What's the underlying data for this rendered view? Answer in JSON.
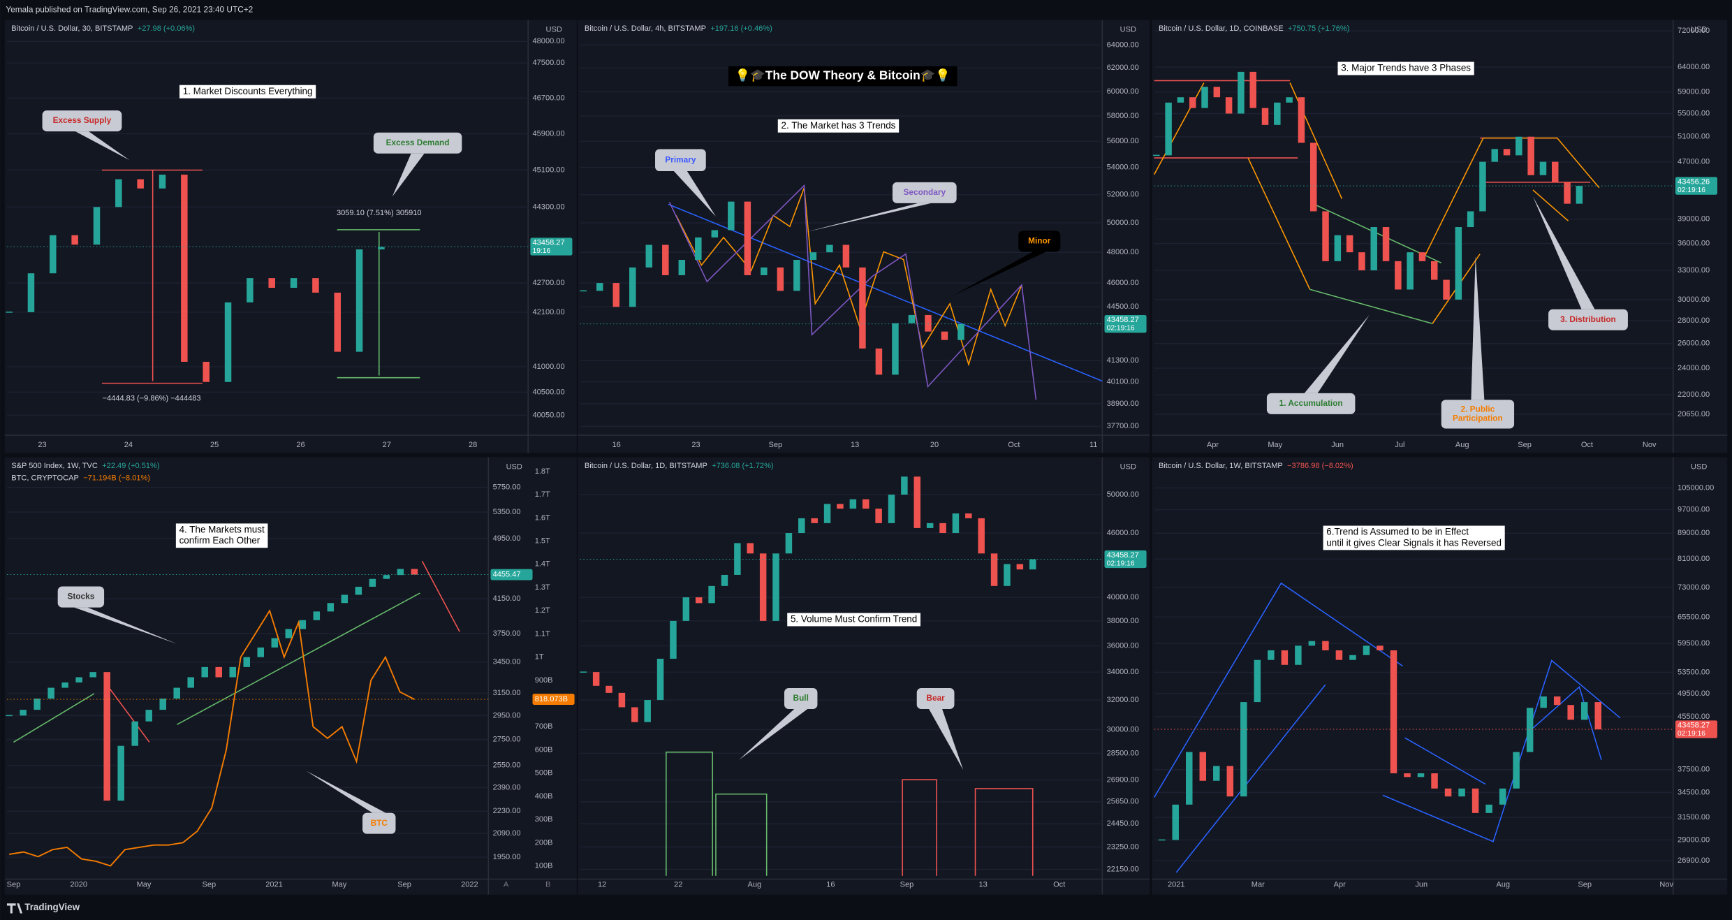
{
  "header": "Yemala published on TradingView.com, Sep 26, 2021 23:40 UTC+2",
  "footer": "TradingView",
  "panels": [
    {
      "legend": [
        {
          "text": "Bitcoin / U.S. Dollar, 30, BITSTAMP",
          "change": "+27.98 (+0.06%)",
          "change_color": "#26a69a"
        }
      ],
      "title_lines": [
        "1. Market Discounts Everything"
      ],
      "annotations": [
        {
          "lines": [
            "Excess Supply"
          ],
          "color": "#c62828"
        },
        {
          "lines": [
            "Excess Demand"
          ],
          "color": "#2e7d32"
        }
      ],
      "measures": [
        "3059.10 (7.51%) 305910",
        "−4444.83 (−9.86%) −444483"
      ],
      "unit": "USD",
      "log_scale": true,
      "ylim": [
        39750,
        48400
      ],
      "yticks": [
        {
          "value": 48000,
          "label": "48000.00"
        },
        {
          "value": 47500,
          "label": "47500.00"
        },
        {
          "value": 46700,
          "label": "46700.00"
        },
        {
          "value": 45900,
          "label": "45900.00"
        },
        {
          "value": 45100,
          "label": "45100.00"
        },
        {
          "value": 44300,
          "label": "44300.00"
        },
        {
          "value": 42700,
          "label": "42700.00"
        },
        {
          "value": 42100,
          "label": "42100.00"
        },
        {
          "value": 41000,
          "label": "41000.00"
        },
        {
          "value": 40500,
          "label": "40500.00"
        },
        {
          "value": 40050,
          "label": "40050.00"
        }
      ],
      "price": {
        "value": 43458.27,
        "time": "19:16",
        "color": "#26a69a"
      },
      "xticks": [
        "23",
        "24",
        "25",
        "26",
        "27",
        "28"
      ],
      "series": [
        {
          "values": [
            42100,
            42900,
            43700,
            43500,
            44300,
            44900,
            44700,
            45000,
            41100,
            40700,
            42300,
            42800,
            42600,
            42800,
            42500,
            41300,
            43400,
            43450
          ],
          "up_color": "#26a69a",
          "down_color": "#ef5350"
        }
      ]
    },
    {
      "legend": [
        {
          "text": "Bitcoin / U.S. Dollar, 4h, BITSTAMP",
          "change": "+197.16 (+0.46%)",
          "change_color": "#26a69a"
        }
      ],
      "headline": "💡🎓The DOW Theory & Bitcoin🎓💡",
      "title_lines": [
        "2. The Market has 3 Trends"
      ],
      "annotations": [
        {
          "lines": [
            "Primary"
          ],
          "color": "#3d5afe"
        },
        {
          "lines": [
            "Secondary"
          ],
          "color": "#7e57c2"
        },
        {
          "lines": [
            "Minor"
          ],
          "color": "#ff9800"
        }
      ],
      "unit": "USD",
      "log_scale": true,
      "ylim": [
        37470,
        65870
      ],
      "yticks": [
        {
          "value": 64000,
          "label": "64000.00"
        },
        {
          "value": 62000,
          "label": "62000.00"
        },
        {
          "value": 60000,
          "label": "60000.00"
        },
        {
          "value": 58000,
          "label": "58000.00"
        },
        {
          "value": 56000,
          "label": "56000.00"
        },
        {
          "value": 54000,
          "label": "54000.00"
        },
        {
          "value": 52000,
          "label": "52000.00"
        },
        {
          "value": 50000,
          "label": "50000.00"
        },
        {
          "value": 48000,
          "label": "48000.00"
        },
        {
          "value": 46000,
          "label": "46000.00"
        },
        {
          "value": 44500,
          "label": "44500.00"
        },
        {
          "value": 41300,
          "label": "41300.00"
        },
        {
          "value": 40100,
          "label": "40100.00"
        },
        {
          "value": 38900,
          "label": "38900.00"
        },
        {
          "value": 37700,
          "label": "37700.00"
        }
      ],
      "price": {
        "value": 43458.27,
        "time": "02:19:16",
        "color": "#26a69a"
      },
      "xticks": [
        "16",
        "23",
        "Sep",
        "13",
        "20",
        "Oct",
        "11"
      ],
      "series": [
        {
          "values": [
            45500,
            46000,
            44500,
            47000,
            48500,
            46500,
            47500,
            49000,
            49500,
            51500,
            46500,
            47000,
            45500,
            47500,
            48000,
            48500,
            47000,
            42000,
            40500,
            43500,
            44000,
            43000,
            42500,
            43450
          ],
          "up_color": "#26a69a",
          "down_color": "#ef5350"
        }
      ]
    },
    {
      "legend": [
        {
          "text": "Bitcoin / U.S. Dollar, 1D, COINBASE",
          "change": "+750.75 (+1.76%)",
          "change_color": "#26a69a"
        }
      ],
      "title_lines": [
        "3. Major Trends have 3 Phases"
      ],
      "annotations": [
        {
          "lines": [
            "1. Accumulation"
          ],
          "color": "#2e7d32"
        },
        {
          "lines": [
            "2. Public",
            "Participation"
          ],
          "color": "#f57c00"
        },
        {
          "lines": [
            "3. Distribution"
          ],
          "color": "#c62828"
        }
      ],
      "unit": "USD",
      "log_scale": true,
      "ylim": [
        19570,
        73560
      ],
      "yticks": [
        {
          "value": 72000,
          "label": "72000.00"
        },
        {
          "value": 64000,
          "label": "64000.00"
        },
        {
          "value": 59000,
          "label": "59000.00"
        },
        {
          "value": 55000,
          "label": "55000.00"
        },
        {
          "value": 51000,
          "label": "51000.00"
        },
        {
          "value": 47000,
          "label": "47000.00"
        },
        {
          "value": 39000,
          "label": "39000.00"
        },
        {
          "value": 36000,
          "label": "36000.00"
        },
        {
          "value": 33000,
          "label": "33000.00"
        },
        {
          "value": 30000,
          "label": "30000.00"
        },
        {
          "value": 28000,
          "label": "28000.00"
        },
        {
          "value": 26000,
          "label": "26000.00"
        },
        {
          "value": 24000,
          "label": "24000.00"
        },
        {
          "value": 22000,
          "label": "22000.00"
        },
        {
          "value": 20650,
          "label": "20650.00"
        }
      ],
      "price": {
        "value": 43456.26,
        "time": "02:19:16",
        "color": "#26a69a"
      },
      "xticks": [
        "Apr",
        "May",
        "Jun",
        "Jul",
        "Aug",
        "Sep",
        "Oct",
        "Nov"
      ],
      "series": [
        {
          "values": [
            48000,
            57000,
            58000,
            56000,
            60000,
            58000,
            55000,
            63000,
            56000,
            53000,
            57000,
            58000,
            50000,
            40000,
            34000,
            37000,
            35000,
            33000,
            38000,
            34000,
            31000,
            35000,
            34000,
            32000,
            30000,
            38000,
            40000,
            47000,
            49000,
            48000,
            51000,
            45000,
            47000,
            44000,
            41000,
            43450
          ],
          "up_color": "#26a69a",
          "down_color": "#ef5350"
        }
      ]
    },
    {
      "legend": [
        {
          "text": "S&P 500 Index, 1W, TVC",
          "change": "+22.49 (+0.51%)",
          "change_color": "#26a69a"
        },
        {
          "text": "BTC, CRYPTOCAP",
          "change": "−71.194B (−8.01%)",
          "change_color": "#f57c00"
        }
      ],
      "title_lines": [
        "4. The Markets must",
        "confirm Each Other"
      ],
      "annotations": [
        {
          "lines": [
            "Stocks"
          ],
          "color": "#333333"
        },
        {
          "lines": [
            "BTC"
          ],
          "color": "#f57c00"
        }
      ],
      "unit": "USD",
      "log_scale": true,
      "ylim": [
        1852,
        6160
      ],
      "yticks": [
        {
          "value": 5750,
          "label": "5750.00"
        },
        {
          "value": 5350,
          "label": "5350.00"
        },
        {
          "value": 4950,
          "label": "4950.00"
        },
        {
          "value": 4150,
          "label": "4150.00"
        },
        {
          "value": 3750,
          "label": "3750.00"
        },
        {
          "value": 3450,
          "label": "3450.00"
        },
        {
          "value": 3150,
          "label": "3150.00"
        },
        {
          "value": 2950,
          "label": "2950.00"
        },
        {
          "value": 2750,
          "label": "2750.00"
        },
        {
          "value": 2550,
          "label": "2550.00"
        },
        {
          "value": 2390,
          "label": "2390.00"
        },
        {
          "value": 2230,
          "label": "2230.00"
        },
        {
          "value": 2090,
          "label": "2090.00"
        },
        {
          "value": 1950,
          "label": "1950.00"
        }
      ],
      "y2lim": [
        62,
        1833
      ],
      "y2ticks": [
        {
          "value": 1800,
          "label": "1.8T"
        },
        {
          "value": 1700,
          "label": "1.7T"
        },
        {
          "value": 1600,
          "label": "1.6T"
        },
        {
          "value": 1500,
          "label": "1.5T"
        },
        {
          "value": 1400,
          "label": "1.4T"
        },
        {
          "value": 1300,
          "label": "1.3T"
        },
        {
          "value": 1200,
          "label": "1.2T"
        },
        {
          "value": 1100,
          "label": "1.1T"
        },
        {
          "value": 1000,
          "label": "1T"
        },
        {
          "value": 900,
          "label": "900B"
        },
        {
          "value": 700,
          "label": "700B"
        },
        {
          "value": 600,
          "label": "600B"
        },
        {
          "value": 500,
          "label": "500B"
        },
        {
          "value": 400,
          "label": "400B"
        },
        {
          "value": 300,
          "label": "300B"
        },
        {
          "value": 200,
          "label": "200B"
        },
        {
          "value": 100,
          "label": "100B"
        }
      ],
      "price": {
        "value": 4455.47,
        "color": "#26a69a"
      },
      "price2": {
        "value": 818.073,
        "label": "818.073B",
        "color": "#f57c00"
      },
      "axis_badges": [
        "A",
        "B"
      ],
      "xticks": [
        "Sep",
        "2020",
        "May",
        "Sep",
        "2021",
        "May",
        "Sep",
        "2022"
      ],
      "series": [
        {
          "values": [
            2950,
            3000,
            3100,
            3200,
            3250,
            3300,
            3350,
            2300,
            2700,
            2900,
            3000,
            3100,
            3200,
            3300,
            3400,
            3300,
            3400,
            3500,
            3600,
            3700,
            3800,
            3900,
            4000,
            4100,
            4200,
            4300,
            4400,
            4450,
            4530,
            4455
          ],
          "up_color": "#26a69a",
          "down_color": "#ef5350"
        },
        {
          "values": [
            150,
            160,
            140,
            170,
            180,
            130,
            120,
            100,
            170,
            180,
            190,
            190,
            200,
            250,
            350,
            600,
            1000,
            1100,
            1200,
            1000,
            1150,
            700,
            650,
            700,
            550,
            900,
            1000,
            850,
            818
          ],
          "color": "#f57c00",
          "axis": "y2"
        }
      ]
    },
    {
      "legend": [
        {
          "text": "Bitcoin / U.S. Dollar, 1D, BITSTAMP",
          "change": "+736.08 (+1.72%)",
          "change_color": "#26a69a"
        }
      ],
      "title_lines": [
        "5. Volume Must Confirm Trend"
      ],
      "annotations": [
        {
          "lines": [
            "Bull"
          ],
          "color": "#2e7d32"
        },
        {
          "lines": [
            "Bear"
          ],
          "color": "#c62828"
        }
      ],
      "unit": "USD",
      "log_scale": true,
      "ylim": [
        21890,
        53460
      ],
      "yticks": [
        {
          "value": 50000,
          "label": "50000.00"
        },
        {
          "value": 46000,
          "label": "46000.00"
        },
        {
          "value": 40000,
          "label": "40000.00"
        },
        {
          "value": 38000,
          "label": "38000.00"
        },
        {
          "value": 36000,
          "label": "36000.00"
        },
        {
          "value": 34000,
          "label": "34000.00"
        },
        {
          "value": 32000,
          "label": "32000.00"
        },
        {
          "value": 30000,
          "label": "30000.00"
        },
        {
          "value": 28500,
          "label": "28500.00"
        },
        {
          "value": 26900,
          "label": "26900.00"
        },
        {
          "value": 25650,
          "label": "25650.00"
        },
        {
          "value": 24450,
          "label": "24450.00"
        },
        {
          "value": 23250,
          "label": "23250.00"
        },
        {
          "value": 22150,
          "label": "22150.00"
        }
      ],
      "price": {
        "value": 43458.27,
        "time": "02:19:16",
        "color": "#26a69a"
      },
      "xticks": [
        "12",
        "22",
        "Aug",
        "16",
        "Sep",
        "13",
        "Oct"
      ],
      "series": [
        {
          "values": [
            34000,
            33000,
            32500,
            31500,
            30500,
            32000,
            35000,
            38000,
            40000,
            39500,
            41000,
            42000,
            45000,
            44000,
            38000,
            44000,
            46000,
            47500,
            47000,
            49000,
            48500,
            49500,
            48500,
            47000,
            50000,
            52000,
            46500,
            47000,
            46000,
            48000,
            47500,
            44000,
            41000,
            43000,
            42500,
            43450
          ],
          "up_color": "#26a69a",
          "down_color": "#ef5350"
        }
      ]
    },
    {
      "legend": [
        {
          "text": "Bitcoin / U.S. Dollar, 1W, BITSTAMP",
          "change": "−3786.98 (−8.02%)",
          "change_color": "#ef5350"
        }
      ],
      "title_lines": [
        "6.Trend is Assumed to be in Effect",
        "until it gives Clear Signals it has Reversed"
      ],
      "annotations": [],
      "unit": "USD",
      "log_scale": true,
      "ylim": [
        25540,
        114670
      ],
      "yticks": [
        {
          "value": 105000,
          "label": "105000.00"
        },
        {
          "value": 97000,
          "label": "97000.00"
        },
        {
          "value": 89000,
          "label": "89000.00"
        },
        {
          "value": 81000,
          "label": "81000.00"
        },
        {
          "value": 73000,
          "label": "73000.00"
        },
        {
          "value": 65500,
          "label": "65500.00"
        },
        {
          "value": 59500,
          "label": "59500.00"
        },
        {
          "value": 53500,
          "label": "53500.00"
        },
        {
          "value": 49500,
          "label": "49500.00"
        },
        {
          "value": 45500,
          "label": "45500.00"
        },
        {
          "value": 37500,
          "label": "37500.00"
        },
        {
          "value": 34500,
          "label": "34500.00"
        },
        {
          "value": 31500,
          "label": "31500.00"
        },
        {
          "value": 29000,
          "label": "29000.00"
        },
        {
          "value": 26900,
          "label": "26900.00"
        }
      ],
      "price": {
        "value": 43458.27,
        "time": "02:19:16",
        "color": "#ef5350"
      },
      "xticks": [
        "2021",
        "Mar",
        "Apr",
        "Jun",
        "Aug",
        "Sep",
        "Nov"
      ],
      "series": [
        {
          "values": [
            29000,
            33000,
            40000,
            36000,
            38000,
            34000,
            48000,
            56000,
            58000,
            55000,
            59000,
            60000,
            58000,
            56000,
            57000,
            59000,
            58000,
            37000,
            36500,
            37000,
            35000,
            34000,
            35000,
            32000,
            33000,
            35000,
            40000,
            47000,
            49000,
            47500,
            45000,
            48000,
            43450
          ],
          "up_color": "#26a69a",
          "down_color": "#ef5350"
        }
      ]
    }
  ]
}
